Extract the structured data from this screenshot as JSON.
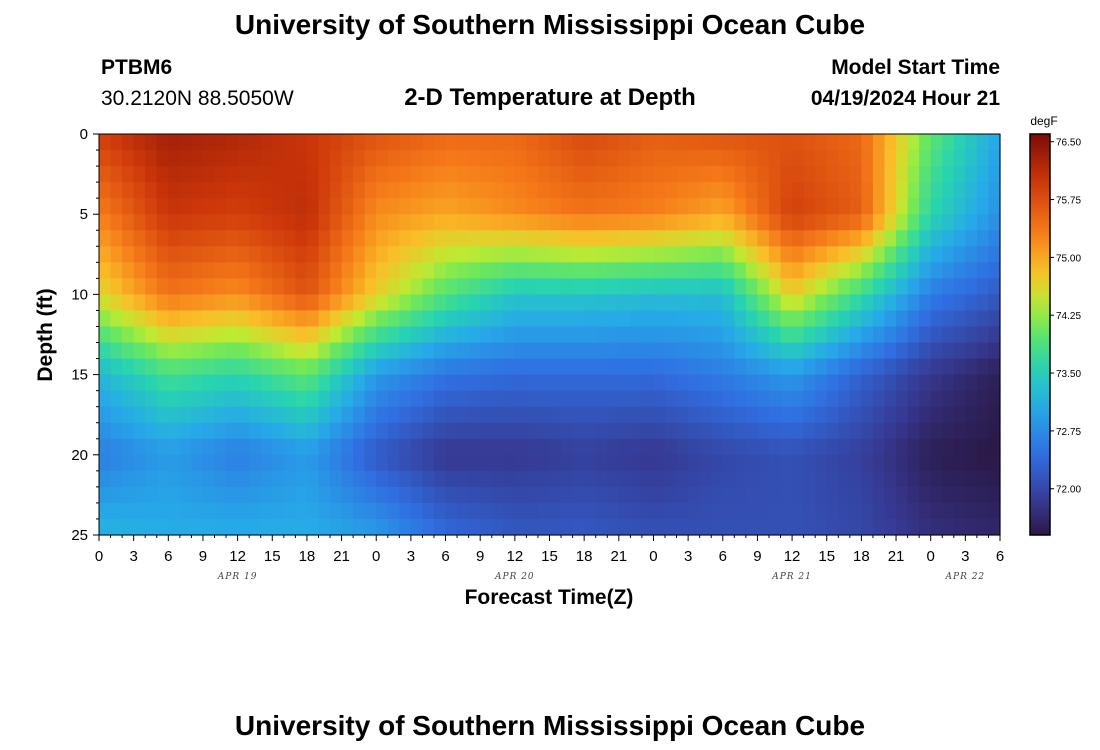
{
  "header": {
    "title": "University of Southern Mississippi Ocean Cube",
    "station_id": "PTBM6",
    "coordinates": "30.2120N  88.5050W",
    "model_start_label": "Model Start Time",
    "model_start_value": "04/19/2024 Hour 21",
    "footer_title": "University of Southern Mississippi Ocean Cube"
  },
  "chart_data": {
    "type": "heatmap",
    "title": "2-D Temperature at Depth",
    "xlabel": "Forecast Time(Z)",
    "ylabel": "Depth (ft)",
    "colorbar_unit": "degF",
    "colorbar_ticks": [
      "76.50",
      "75.75",
      "75.00",
      "74.25",
      "73.50",
      "72.75",
      "72.00"
    ],
    "colorbar_range": [
      71.4,
      76.6
    ],
    "x_range": [
      0,
      78
    ],
    "y_range": [
      0,
      25
    ],
    "y_ticks": [
      0,
      5,
      10,
      15,
      20,
      25
    ],
    "x_ticks": [
      0,
      3,
      6,
      9,
      12,
      15,
      18,
      21,
      24,
      27,
      30,
      33,
      36,
      39,
      42,
      45,
      48,
      51,
      54,
      57,
      60,
      63,
      66,
      69,
      72,
      75,
      78
    ],
    "x_tick_labels": [
      "0",
      "3",
      "6",
      "9",
      "12",
      "15",
      "18",
      "21",
      "0",
      "3",
      "6",
      "9",
      "12",
      "15",
      "18",
      "21",
      "0",
      "3",
      "6",
      "9",
      "12",
      "15",
      "18",
      "21",
      "0",
      "3",
      "6"
    ],
    "date_labels": [
      {
        "text": "APR 19",
        "hour": 12
      },
      {
        "text": "APR 20",
        "hour": 36
      },
      {
        "text": "APR 21",
        "hour": 60
      },
      {
        "text": "APR 22",
        "hour": 75
      }
    ],
    "times": [
      0,
      6,
      12,
      18,
      24,
      30,
      36,
      42,
      48,
      54,
      60,
      66,
      72,
      78
    ],
    "depths": [
      0,
      5,
      10,
      15,
      20,
      25
    ],
    "temperatures": [
      [
        75.9,
        76.3,
        76.2,
        76.0,
        75.7,
        75.5,
        75.5,
        75.8,
        75.6,
        75.7,
        75.7,
        75.5,
        74.0,
        73.0
      ],
      [
        75.3,
        76.0,
        75.9,
        76.1,
        75.2,
        75.0,
        75.2,
        75.4,
        75.3,
        75.0,
        75.9,
        75.6,
        73.6,
        72.8
      ],
      [
        74.6,
        75.4,
        75.2,
        75.7,
        74.7,
        73.9,
        73.4,
        73.4,
        73.3,
        73.3,
        74.7,
        73.7,
        72.6,
        72.2
      ],
      [
        73.2,
        73.8,
        73.6,
        74.0,
        72.9,
        72.5,
        72.4,
        72.4,
        72.4,
        72.6,
        72.9,
        72.3,
        71.8,
        71.5
      ],
      [
        72.6,
        72.9,
        72.6,
        72.9,
        72.2,
        71.8,
        71.8,
        71.9,
        71.8,
        72.0,
        72.1,
        71.9,
        71.5,
        71.4
      ],
      [
        73.2,
        73.1,
        73.1,
        73.1,
        72.9,
        72.4,
        72.2,
        72.2,
        72.1,
        72.1,
        72.1,
        72.0,
        71.7,
        71.6
      ]
    ]
  }
}
